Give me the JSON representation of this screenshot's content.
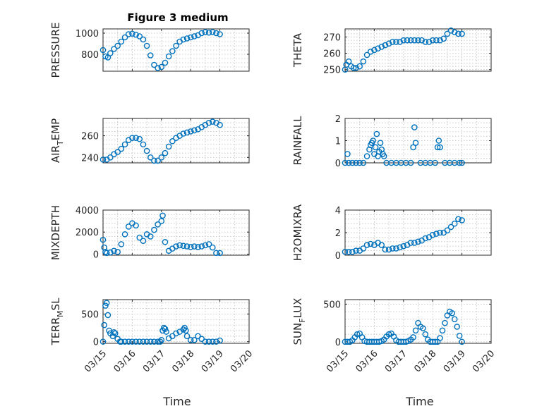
{
  "figure": {
    "title": "Figure 3 medium",
    "marker_color": "#0072BD",
    "grid": true
  },
  "chart_data": [
    {
      "type": "scatter",
      "ylabel": "PRESSURE",
      "ylabel_sub": "",
      "ylabel_tail": "",
      "ylim": [
        640,
        1040
      ],
      "yticks": [
        800,
        1000
      ],
      "ytick_labels": [
        "800",
        "1000"
      ],
      "x": [
        "03/15 00:00",
        "03/15 02:00",
        "03/15 04:00",
        "03/15 06:00",
        "03/15 09:00",
        "03/15 12:00",
        "03/15 15:00",
        "03/15 18:00",
        "03/15 21:00",
        "03/16 00:00",
        "03/16 03:00",
        "03/16 06:00",
        "03/16 09:00",
        "03/16 12:00",
        "03/16 15:00",
        "03/16 18:00",
        "03/16 21:00",
        "03/17 00:00",
        "03/17 03:00",
        "03/17 06:00",
        "03/17 09:00",
        "03/17 12:00",
        "03/17 15:00",
        "03/17 18:00",
        "03/17 21:00",
        "03/18 00:00",
        "03/18 03:00",
        "03/18 06:00",
        "03/18 09:00",
        "03/18 12:00",
        "03/18 15:00",
        "03/18 18:00",
        "03/18 21:00",
        "03/19 00:00"
      ],
      "y": [
        840,
        780,
        770,
        810,
        850,
        880,
        920,
        960,
        990,
        995,
        985,
        970,
        940,
        880,
        790,
        700,
        670,
        680,
        720,
        780,
        830,
        880,
        920,
        940,
        950,
        960,
        970,
        980,
        1000,
        1010,
        1005,
        1010,
        1000,
        990
      ]
    },
    {
      "type": "scatter",
      "ylabel": "THETA",
      "ylabel_sub": "",
      "ylabel_tail": "",
      "ylim": [
        249,
        275
      ],
      "yticks": [
        250,
        260,
        270
      ],
      "ytick_labels": [
        "250",
        "260",
        "270"
      ],
      "x": [
        "03/15 00:00",
        "03/15 01:00",
        "03/15 03:00",
        "03/15 05:00",
        "03/15 07:00",
        "03/15 09:00",
        "03/15 12:00",
        "03/15 15:00",
        "03/15 18:00",
        "03/15 21:00",
        "03/16 00:00",
        "03/16 03:00",
        "03/16 06:00",
        "03/16 09:00",
        "03/16 12:00",
        "03/16 15:00",
        "03/16 18:00",
        "03/16 21:00",
        "03/17 00:00",
        "03/17 03:00",
        "03/17 06:00",
        "03/17 09:00",
        "03/17 12:00",
        "03/17 15:00",
        "03/17 18:00",
        "03/17 21:00",
        "03/18 00:00",
        "03/18 03:00",
        "03/18 06:00",
        "03/18 09:00",
        "03/18 12:00",
        "03/18 15:00",
        "03/18 18:00",
        "03/18 21:00",
        "03/19 00:00"
      ],
      "y": [
        250,
        253,
        255,
        252,
        251,
        251,
        252,
        255,
        259,
        261,
        262,
        263,
        264,
        265,
        266,
        267,
        267,
        267,
        268,
        268,
        268,
        268,
        268,
        268,
        267,
        267,
        268,
        268,
        268,
        269,
        272,
        274,
        273,
        272,
        272
      ]
    },
    {
      "type": "scatter",
      "ylabel": "AIR",
      "ylabel_sub": "T",
      "ylabel_tail": "EMP",
      "ylim": [
        235,
        276
      ],
      "yticks": [
        240,
        260
      ],
      "ytick_labels": [
        "240",
        "260"
      ],
      "x": [
        "03/15 00:00",
        "03/15 03:00",
        "03/15 06:00",
        "03/15 09:00",
        "03/15 12:00",
        "03/15 15:00",
        "03/15 18:00",
        "03/15 21:00",
        "03/16 00:00",
        "03/16 03:00",
        "03/16 06:00",
        "03/16 09:00",
        "03/16 12:00",
        "03/16 15:00",
        "03/16 18:00",
        "03/16 21:00",
        "03/17 00:00",
        "03/17 03:00",
        "03/17 06:00",
        "03/17 09:00",
        "03/17 12:00",
        "03/17 15:00",
        "03/17 18:00",
        "03/17 21:00",
        "03/18 00:00",
        "03/18 03:00",
        "03/18 06:00",
        "03/18 09:00",
        "03/18 12:00",
        "03/18 15:00",
        "03/18 18:00",
        "03/18 21:00",
        "03/19 00:00"
      ],
      "y": [
        238,
        238,
        240,
        243,
        245,
        248,
        252,
        256,
        258,
        258,
        257,
        252,
        246,
        240,
        237,
        237,
        240,
        244,
        250,
        255,
        258,
        260,
        262,
        263,
        264,
        265,
        266,
        268,
        270,
        272,
        273,
        272,
        270
      ]
    },
    {
      "type": "scatter",
      "ylabel": "RAINFALL",
      "ylabel_sub": "",
      "ylabel_tail": "",
      "ylim": [
        0,
        2
      ],
      "yticks": [
        0,
        1,
        2
      ],
      "ytick_labels": [
        "0",
        "1",
        "2"
      ],
      "x": [
        "03/15 00:00",
        "03/15 03:00",
        "03/15 06:00",
        "03/15 09:00",
        "03/15 12:00",
        "03/15 15:00",
        "03/15 18:00",
        "03/15 20:00",
        "03/15 21:00",
        "03/15 22:00",
        "03/15 23:00",
        "03/16 00:00",
        "03/16 01:00",
        "03/16 02:00",
        "03/16 03:00",
        "03/16 04:00",
        "03/16 05:00",
        "03/16 06:00",
        "03/16 08:00",
        "03/16 10:00",
        "03/16 14:00",
        "03/16 18:00",
        "03/16 22:00",
        "03/17 02:00",
        "03/17 06:00",
        "03/17 08:00",
        "03/17 09:00",
        "03/17 10:00",
        "03/17 14:00",
        "03/17 18:00",
        "03/17 22:00",
        "03/18 02:00",
        "03/18 04:00",
        "03/18 05:00",
        "03/18 06:00",
        "03/18 10:00",
        "03/18 14:00",
        "03/18 18:00",
        "03/18 22:00",
        "03/19 00:00",
        "03/15 02:00",
        "03/16 07:00"
      ],
      "y": [
        0,
        0,
        0,
        0,
        0,
        0,
        0.3,
        0.6,
        0.8,
        0.9,
        1.0,
        0.4,
        0.7,
        1.3,
        0.3,
        0.5,
        0.9,
        0.6,
        0.3,
        0,
        0,
        0,
        0,
        0,
        0,
        0.7,
        1.6,
        0.9,
        0,
        0,
        0,
        0,
        0.7,
        1.0,
        0.7,
        0,
        0,
        0,
        0,
        0,
        0.4,
        0.4
      ]
    },
    {
      "type": "scatter",
      "ylabel": "MIXDEPTH",
      "ylabel_sub": "",
      "ylabel_tail": "",
      "ylim": [
        -100,
        4000
      ],
      "yticks": [
        0,
        2000,
        4000
      ],
      "ytick_labels": [
        "0",
        "2000",
        "4000"
      ],
      "x": [
        "03/15 00:00",
        "03/15 01:00",
        "03/15 02:00",
        "03/15 03:00",
        "03/15 06:00",
        "03/15 09:00",
        "03/15 12:00",
        "03/15 15:00",
        "03/15 18:00",
        "03/15 21:00",
        "03/16 00:00",
        "03/16 03:00",
        "03/16 06:00",
        "03/16 09:00",
        "03/16 12:00",
        "03/16 15:00",
        "03/16 18:00",
        "03/16 21:00",
        "03/17 00:00",
        "03/17 01:00",
        "03/17 03:00",
        "03/17 06:00",
        "03/17 09:00",
        "03/17 12:00",
        "03/17 15:00",
        "03/17 18:00",
        "03/17 21:00",
        "03/18 00:00",
        "03/18 03:00",
        "03/18 06:00",
        "03/18 09:00",
        "03/18 12:00",
        "03/18 15:00",
        "03/18 18:00",
        "03/18 21:00",
        "03/19 00:00"
      ],
      "y": [
        1300,
        600,
        200,
        100,
        150,
        300,
        200,
        900,
        1800,
        2500,
        2800,
        2600,
        1500,
        1200,
        1800,
        1600,
        2200,
        2700,
        3000,
        3500,
        1100,
        300,
        500,
        700,
        800,
        750,
        700,
        650,
        700,
        650,
        700,
        800,
        900,
        600,
        100,
        100
      ]
    },
    {
      "type": "scatter",
      "ylabel": "H2OMIXRA",
      "ylabel_sub": "",
      "ylabel_tail": "",
      "ylim": [
        0,
        4
      ],
      "yticks": [
        0,
        2,
        4
      ],
      "ytick_labels": [
        "0",
        "2",
        "4"
      ],
      "x": [
        "03/15 00:00",
        "03/15 03:00",
        "03/15 06:00",
        "03/15 09:00",
        "03/15 12:00",
        "03/15 15:00",
        "03/15 18:00",
        "03/15 21:00",
        "03/16 00:00",
        "03/16 03:00",
        "03/16 06:00",
        "03/16 09:00",
        "03/16 12:00",
        "03/16 15:00",
        "03/16 18:00",
        "03/16 21:00",
        "03/17 00:00",
        "03/17 03:00",
        "03/17 06:00",
        "03/17 09:00",
        "03/17 12:00",
        "03/17 15:00",
        "03/17 18:00",
        "03/17 21:00",
        "03/18 00:00",
        "03/18 03:00",
        "03/18 06:00",
        "03/18 09:00",
        "03/18 12:00",
        "03/18 15:00",
        "03/18 18:00",
        "03/18 21:00",
        "03/19 00:00"
      ],
      "y": [
        0.3,
        0.3,
        0.3,
        0.4,
        0.4,
        0.6,
        0.9,
        1.0,
        0.9,
        1.1,
        0.9,
        0.5,
        0.5,
        0.6,
        0.6,
        0.7,
        0.8,
        0.9,
        1.1,
        1.1,
        1.2,
        1.3,
        1.5,
        1.6,
        1.8,
        1.9,
        2.0,
        2.0,
        2.2,
        2.5,
        2.8,
        3.2,
        3.1
      ]
    },
    {
      "type": "scatter",
      "ylabel": "TERR",
      "ylabel_sub": "M",
      "ylabel_tail": "SL",
      "ylim": [
        -30,
        760
      ],
      "yticks": [
        0,
        500
      ],
      "ytick_labels": [
        "0",
        "500"
      ],
      "x": [
        "03/15 00:00",
        "03/15 01:00",
        "03/15 02:00",
        "03/15 03:00",
        "03/15 04:00",
        "03/15 05:00",
        "03/15 06:00",
        "03/15 08:00",
        "03/15 09:00",
        "03/15 10:00",
        "03/15 12:00",
        "03/15 14:00",
        "03/15 15:00",
        "03/15 18:00",
        "03/15 21:00",
        "03/16 00:00",
        "03/16 03:00",
        "03/16 06:00",
        "03/16 09:00",
        "03/16 12:00",
        "03/16 15:00",
        "03/16 18:00",
        "03/16 21:00",
        "03/16 23:00",
        "03/17 00:00",
        "03/17 01:00",
        "03/17 02:00",
        "03/17 03:00",
        "03/17 04:00",
        "03/17 06:00",
        "03/17 09:00",
        "03/17 12:00",
        "03/17 15:00",
        "03/17 18:00",
        "03/17 19:00",
        "03/17 20:00",
        "03/17 21:00",
        "03/18 00:00",
        "03/18 03:00",
        "03/18 06:00",
        "03/18 09:00",
        "03/18 12:00",
        "03/18 15:00",
        "03/18 18:00",
        "03/18 21:00",
        "03/19 00:00"
      ],
      "y": [
        0,
        300,
        650,
        700,
        480,
        200,
        150,
        100,
        170,
        150,
        50,
        0,
        0,
        0,
        0,
        0,
        0,
        0,
        0,
        0,
        0,
        0,
        0,
        0,
        30,
        200,
        250,
        230,
        180,
        60,
        100,
        150,
        180,
        220,
        250,
        200,
        100,
        30,
        30,
        100,
        50,
        0,
        0,
        0,
        0,
        20
      ]
    },
    {
      "type": "scatter",
      "ylabel": "SUN",
      "ylabel_sub": "F",
      "ylabel_tail": "LUX",
      "ylim": [
        -20,
        560
      ],
      "yticks": [
        0,
        500
      ],
      "ytick_labels": [
        "0",
        "500"
      ],
      "x": [
        "03/15 00:00",
        "03/15 02:00",
        "03/15 04:00",
        "03/15 06:00",
        "03/15 08:00",
        "03/15 10:00",
        "03/15 12:00",
        "03/15 14:00",
        "03/15 16:00",
        "03/15 18:00",
        "03/15 20:00",
        "03/15 22:00",
        "03/16 00:00",
        "03/16 02:00",
        "03/16 04:00",
        "03/16 06:00",
        "03/16 08:00",
        "03/16 10:00",
        "03/16 12:00",
        "03/16 14:00",
        "03/16 16:00",
        "03/16 18:00",
        "03/16 20:00",
        "03/16 22:00",
        "03/17 00:00",
        "03/17 02:00",
        "03/17 04:00",
        "03/17 06:00",
        "03/17 08:00",
        "03/17 10:00",
        "03/17 12:00",
        "03/17 14:00",
        "03/17 16:00",
        "03/17 18:00",
        "03/17 20:00",
        "03/17 22:00",
        "03/18 00:00",
        "03/18 02:00",
        "03/18 04:00",
        "03/18 06:00",
        "03/18 08:00",
        "03/18 10:00",
        "03/18 12:00",
        "03/18 14:00",
        "03/18 16:00",
        "03/18 18:00",
        "03/18 20:00",
        "03/18 22:00",
        "03/19 00:00"
      ],
      "y": [
        0,
        0,
        0,
        20,
        60,
        100,
        110,
        60,
        10,
        0,
        0,
        0,
        0,
        0,
        0,
        10,
        30,
        70,
        100,
        110,
        70,
        20,
        0,
        0,
        0,
        0,
        10,
        30,
        60,
        150,
        250,
        200,
        180,
        100,
        30,
        0,
        0,
        0,
        0,
        50,
        150,
        250,
        350,
        400,
        380,
        300,
        200,
        80,
        0
      ]
    }
  ],
  "xaxis": {
    "label": "Time",
    "ticks": [
      "03/15",
      "03/16",
      "03/17",
      "03/18",
      "03/19",
      "03/20"
    ],
    "range": [
      "03/15 00:00",
      "03/20 00:00"
    ]
  }
}
